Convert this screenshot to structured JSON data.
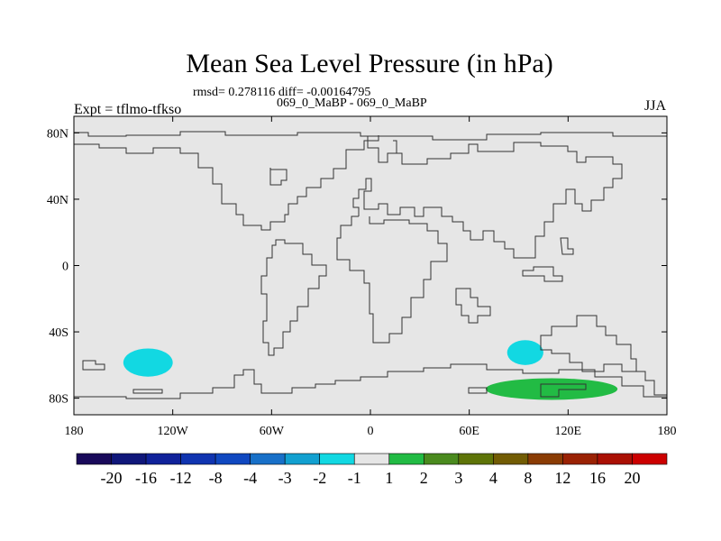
{
  "chart_data": {
    "type": "heatmap",
    "title": "Mean Sea Level Pressure (in hPa)",
    "stats": "rmsd= 0.278116 diff= -0.00164795",
    "subtitle": "069_0_MaBP - 069_0_MaBP",
    "experiment": "Expt = tflmo-tfkso",
    "season": "JJA",
    "x_ticks": [
      "180",
      "120W",
      "60W",
      "0",
      "60E",
      "120E",
      "180"
    ],
    "x_tick_values": [
      -180,
      -120,
      -60,
      0,
      60,
      120,
      180
    ],
    "y_ticks": [
      "80N",
      "40N",
      "0",
      "40S",
      "80S"
    ],
    "y_tick_values": [
      80,
      40,
      0,
      -40,
      -80
    ],
    "xlim": [
      -180,
      180
    ],
    "ylim": [
      -90,
      90
    ],
    "background_value_range": [
      -1,
      1
    ],
    "anomalies": [
      {
        "sign": "negative",
        "bin": "-2 to -1",
        "lon_range": [
          -150,
          -120
        ],
        "lat_range": [
          -67,
          -50
        ]
      },
      {
        "sign": "negative",
        "bin": "-2 to -1",
        "lon_range": [
          83,
          105
        ],
        "lat_range": [
          -60,
          -45
        ]
      },
      {
        "sign": "positive",
        "bin": "1 to 2",
        "lon_range": [
          70,
          150
        ],
        "lat_range": [
          -81,
          -68
        ]
      }
    ],
    "colorbar": {
      "labels": [
        "-20",
        "-16",
        "-12",
        "-8",
        "-4",
        "-3",
        "-2",
        "-1",
        "1",
        "2",
        "3",
        "4",
        "8",
        "12",
        "16",
        "20"
      ],
      "colors": [
        "#190a5a",
        "#10177a",
        "#10229a",
        "#1034b0",
        "#1048c0",
        "#1870c8",
        "#12a0d0",
        "#12d8e2",
        "#e6e6e6",
        "#22bb44",
        "#4a8a1e",
        "#5e7408",
        "#725c04",
        "#8a3c04",
        "#9a2204",
        "#aa1004",
        "#cc0000"
      ]
    }
  }
}
